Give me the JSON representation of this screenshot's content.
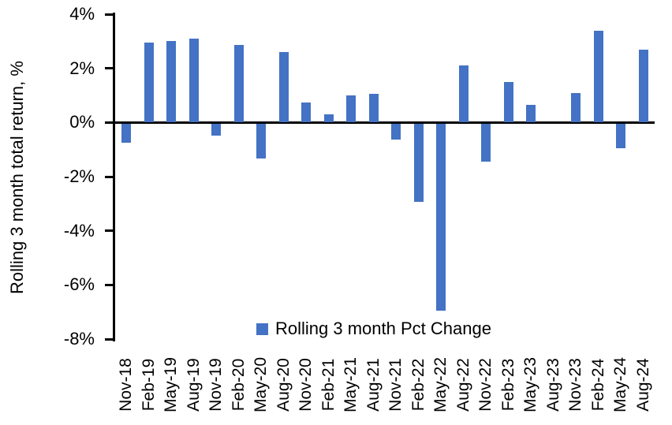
{
  "chart_data": {
    "type": "bar",
    "title": "",
    "xlabel": "",
    "ylabel": "Rolling 3 month total return, %",
    "ylim": [
      -8,
      4
    ],
    "ytick_labels": [
      "4%",
      "2%",
      "0%",
      "-2%",
      "-4%",
      "-6%",
      "-8%"
    ],
    "grid": false,
    "legend_position": "bottom-center",
    "legend_label": "Rolling 3 month Pct Change",
    "categories": [
      "Nov-18",
      "Feb-19",
      "May-19",
      "Aug-19",
      "Nov-19",
      "Feb-20",
      "May-20",
      "Aug-20",
      "Nov-20",
      "Feb-21",
      "May-21",
      "Aug-21",
      "Nov-21",
      "Feb-22",
      "May-22",
      "Aug-22",
      "Nov-22",
      "Feb-23",
      "May-23",
      "Aug-23",
      "Nov-23",
      "Feb-24",
      "May-24",
      "Aug-24"
    ],
    "series": [
      {
        "name": "Rolling 3 month Pct Change",
        "color": "#4472C4",
        "values": [
          -0.7,
          2.95,
          3.0,
          3.1,
          -0.45,
          2.85,
          -1.3,
          2.6,
          0.75,
          0.3,
          1.0,
          1.05,
          -0.6,
          -2.9,
          -6.9,
          2.1,
          -1.4,
          1.5,
          0.65,
          0.0,
          1.1,
          3.4,
          -0.9,
          2.7
        ]
      }
    ]
  },
  "colors": {
    "bar": "#4472C4",
    "axis": "#000000",
    "text": "#000000",
    "background": "#FFFFFF"
  }
}
